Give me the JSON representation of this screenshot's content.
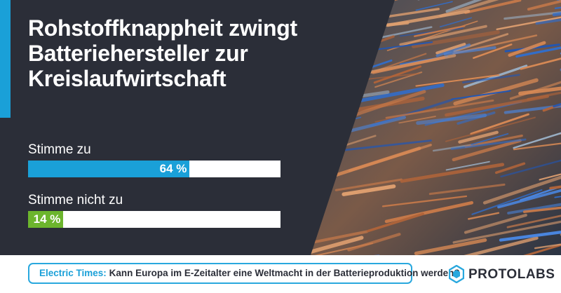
{
  "headline": "Rohstoffknappheit zwingt Batteriehersteller zur Kreislaufwirtschaft",
  "chart_data": {
    "type": "bar",
    "orientation": "horizontal",
    "categories": [
      "Stimme zu",
      "Stimme nicht zu"
    ],
    "values": [
      64,
      14
    ],
    "value_labels": [
      "64 %",
      "14 %"
    ],
    "unit": "%",
    "xlim": [
      0,
      100
    ],
    "colors": [
      "#1aa0d8",
      "#6cb52d"
    ],
    "track_color": "#ffffff",
    "grid": false
  },
  "footer": {
    "source": "Electric Times:",
    "question": "Kann Europa im E-Zeitalter eine Weltmacht in der Batterieproduktion werden?"
  },
  "brand": {
    "name": "PROTOLABS",
    "icon": "protolabs-hexagon-icon",
    "color": "#29a8de"
  },
  "colors": {
    "background": "#2b2e38",
    "accent": "#1aa0d8"
  }
}
